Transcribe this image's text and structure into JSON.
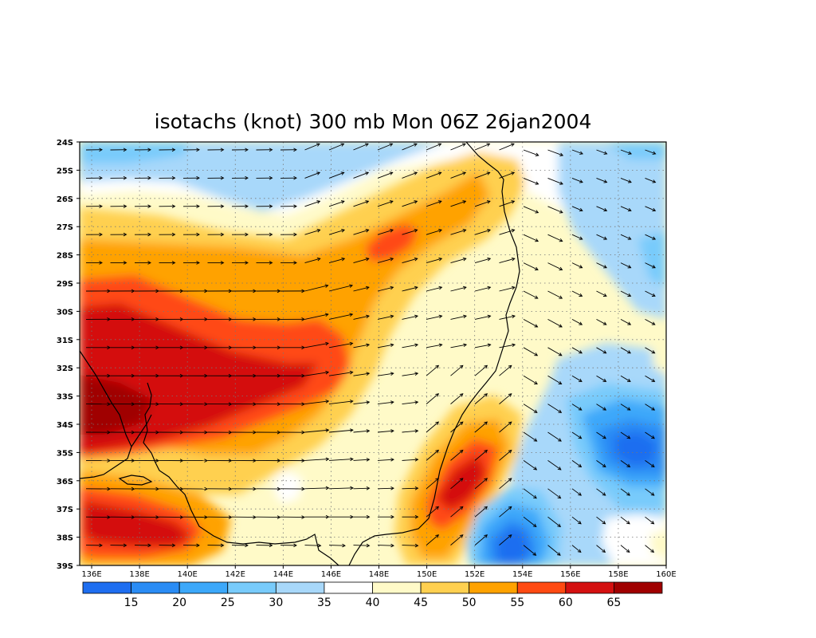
{
  "title": "isotachs (knot) 300 mb Mon 06Z 26jan2004",
  "lat_labels": [
    "24S",
    "25S",
    "26S",
    "27S",
    "28S",
    "29S",
    "30S",
    "31S",
    "32S",
    "33S",
    "34S",
    "35S",
    "36S",
    "37S",
    "38S",
    "39S"
  ],
  "lon_labels": [
    "136E",
    "138E",
    "140E",
    "142E",
    "144E",
    "146E",
    "148E",
    "150E",
    "152E",
    "154E",
    "156E",
    "158E",
    "160E"
  ],
  "colorbar": {
    "labels": [
      "15",
      "20",
      "25",
      "30",
      "35",
      "40",
      "45",
      "50",
      "55",
      "60",
      "65"
    ],
    "colors": [
      "#1e6ef0",
      "#2a8cf5",
      "#3ca8fa",
      "#78cbfb",
      "#a8d8fa",
      "#ffffff",
      "#fffac8",
      "#ffd050",
      "#ffa200",
      "#ff4a12",
      "#d41010",
      "#a00000"
    ]
  },
  "map": {
    "field": "isotachs (knot)",
    "level": "300 mb",
    "valid": "Mon 06Z 26jan2004",
    "lon_range": [
      135.5,
      160
    ],
    "lat_range": [
      -39,
      -24
    ],
    "features": [
      "wind speed shading",
      "wind vectors",
      "coastline of south-east Australia",
      "dotted lat/lon grid"
    ]
  }
}
